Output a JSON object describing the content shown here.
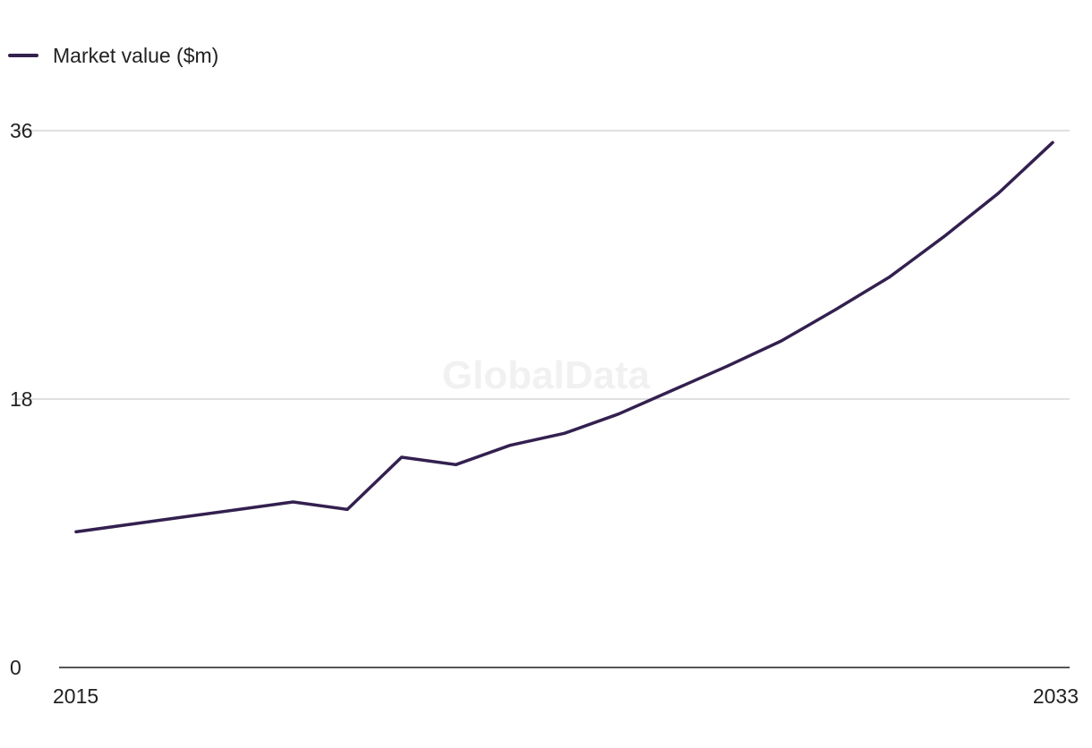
{
  "watermark": "GlobalData",
  "colors": {
    "series": "#33204f",
    "grid": "#d6d6d6",
    "axis": "#1f1f1f",
    "text": "#222222"
  },
  "chart_data": {
    "type": "line",
    "title": "",
    "xlabel": "",
    "ylabel": "",
    "legend": {
      "placement": "top-left"
    },
    "grid": {
      "y": true,
      "x": false
    },
    "xlim": [
      2015,
      2033
    ],
    "ylim": [
      0,
      36
    ],
    "x_ticks": [
      {
        "value": 2015,
        "label": "2015"
      },
      {
        "value": 2033,
        "label": "2033"
      }
    ],
    "y_ticks": [
      {
        "value": 0,
        "label": "0"
      },
      {
        "value": 18,
        "label": "18"
      },
      {
        "value": 36,
        "label": "36"
      }
    ],
    "x": [
      2015,
      2016,
      2017,
      2018,
      2019,
      2020,
      2021,
      2022,
      2023,
      2024,
      2025,
      2026,
      2027,
      2028,
      2029,
      2030,
      2031,
      2032,
      2033
    ],
    "series": [
      {
        "name": "Market value ($m)",
        "values": [
          9.1,
          9.6,
          10.1,
          10.6,
          11.1,
          10.6,
          14.1,
          13.6,
          14.9,
          15.7,
          17.0,
          18.6,
          20.2,
          21.9,
          24.0,
          26.2,
          28.9,
          31.8,
          35.2
        ]
      }
    ]
  }
}
